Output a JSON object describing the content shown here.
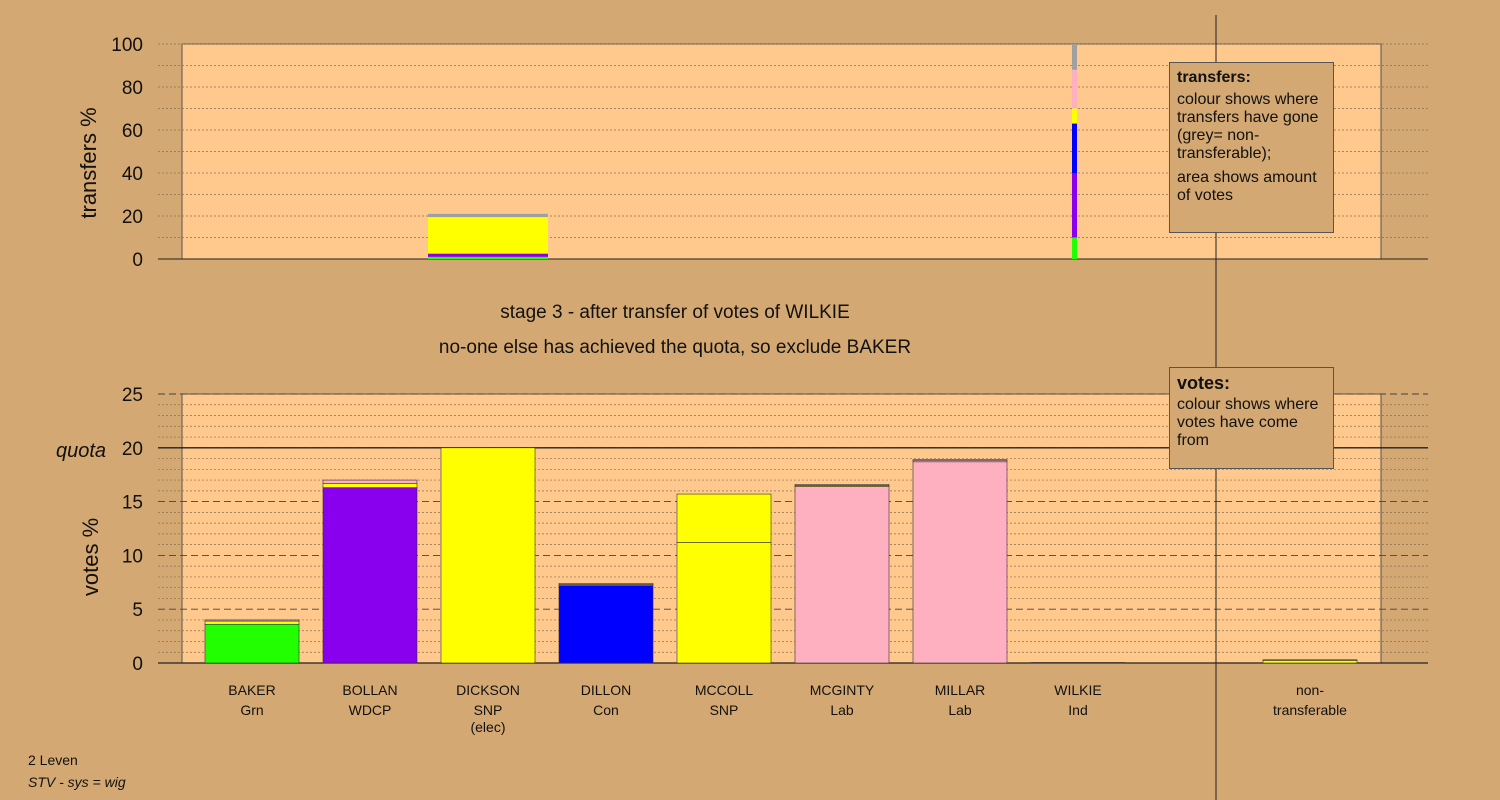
{
  "colors": {
    "background": "#d4a872",
    "plot_background": "#ffc88c",
    "nontransferable": "#a0a0a0"
  },
  "headings": {
    "stage": "stage 3 - after transfer of votes of WILKIE",
    "status": "no-one else has achieved the quota, so exclude BAKER"
  },
  "legend_transfers": {
    "title": "transfers:",
    "line1": "colour shows where transfers have gone (grey= non-transferable);",
    "line2": "area shows amount of votes"
  },
  "legend_votes": {
    "title": "votes:",
    "line1": "colour shows where votes have come from"
  },
  "footer": {
    "area": "2 Leven",
    "system": "STV - sys = wig"
  },
  "chart_data": [
    {
      "id": "transfers",
      "type": "bar",
      "ylabel": "transfers %",
      "ylim": [
        0,
        100
      ],
      "yticks": [
        0,
        20,
        40,
        60,
        80,
        100
      ],
      "grid": true,
      "bars": [
        {
          "category": "DICKSON",
          "segments": [
            {
              "party": "Grn",
              "color": "#22ff00",
              "value": 1
            },
            {
              "party": "WDCP",
              "color": "#8800ee",
              "value": 1.5
            },
            {
              "party": "SNP",
              "color": "#ffff00",
              "value": 17
            },
            {
              "party": "non-transferable",
              "color": "#a0a0a0",
              "value": 1.5
            }
          ]
        },
        {
          "category": "WILKIE",
          "segments": [
            {
              "party": "Grn",
              "color": "#22ff00",
              "value": 10
            },
            {
              "party": "WDCP",
              "color": "#8800ee",
              "value": 30
            },
            {
              "party": "Con",
              "color": "#0000ff",
              "value": 23
            },
            {
              "party": "SNP",
              "color": "#ffff00",
              "value": 7
            },
            {
              "party": "Lab",
              "color": "#ffb0c0",
              "value": 18
            },
            {
              "party": "non-transferable",
              "color": "#a0a0a0",
              "value": 12
            }
          ]
        }
      ]
    },
    {
      "id": "votes",
      "type": "bar",
      "ylabel": "votes %",
      "ylim": [
        0,
        25
      ],
      "yticks": [
        0,
        5,
        10,
        15,
        20,
        25
      ],
      "quota": 20,
      "quota_label": "quota",
      "grid": true,
      "candidates": [
        {
          "name": "BAKER",
          "party": "Grn",
          "note": "",
          "color": "#22ff00",
          "segments": [
            {
              "color": "#22ff00",
              "value": 3.6
            },
            {
              "color": "#ffff00",
              "value": 0.3
            },
            {
              "color": "#ffb0c0",
              "value": 0.1
            }
          ]
        },
        {
          "name": "BOLLAN",
          "party": "WDCP",
          "note": "",
          "color": "#8800ee",
          "segments": [
            {
              "color": "#8800ee",
              "value": 16.3
            },
            {
              "color": "#ffff00",
              "value": 0.4
            },
            {
              "color": "#ffb0c0",
              "value": 0.3
            }
          ]
        },
        {
          "name": "DICKSON",
          "party": "SNP",
          "note": "(elec)",
          "color": "#ffff00",
          "segments": [
            {
              "color": "#ffff00",
              "value": 20
            }
          ]
        },
        {
          "name": "DILLON",
          "party": "Con",
          "note": "",
          "color": "#0000ff",
          "segments": [
            {
              "color": "#0000ff",
              "value": 7.2
            },
            {
              "color": "#ffff00",
              "value": 0.1
            },
            {
              "color": "#ffb0c0",
              "value": 0.1
            }
          ]
        },
        {
          "name": "MCCOLL",
          "party": "SNP",
          "note": "",
          "color": "#ffff00",
          "segments": [
            {
              "color": "#ffff00",
              "value": 11.2
            },
            {
              "color": "#ffff00",
              "value": 4.5
            }
          ]
        },
        {
          "name": "MCGINTY",
          "party": "Lab",
          "note": "",
          "color": "#ffb0c0",
          "segments": [
            {
              "color": "#ffb0c0",
              "value": 16.4
            },
            {
              "color": "#ffff00",
              "value": 0.1
            },
            {
              "color": "#ffb0c0",
              "value": 0.1
            }
          ]
        },
        {
          "name": "MILLAR",
          "party": "Lab",
          "note": "",
          "color": "#ffb0c0",
          "segments": [
            {
              "color": "#ffb0c0",
              "value": 18.7
            },
            {
              "color": "#ffff00",
              "value": 0.1
            },
            {
              "color": "#ffb0c0",
              "value": 0.1
            }
          ]
        },
        {
          "name": "WILKIE",
          "party": "Ind",
          "note": "",
          "color": "#ffb0c0",
          "segments": [
            {
              "color": "#ffb0c0",
              "value": 0.05
            }
          ]
        }
      ],
      "nontransferable": {
        "line1": "non-",
        "line2": "transferable",
        "segments": [
          {
            "color": "#ffff00",
            "value": 0.25
          },
          {
            "color": "#a0a0a0",
            "value": 0.05
          }
        ]
      }
    }
  ]
}
